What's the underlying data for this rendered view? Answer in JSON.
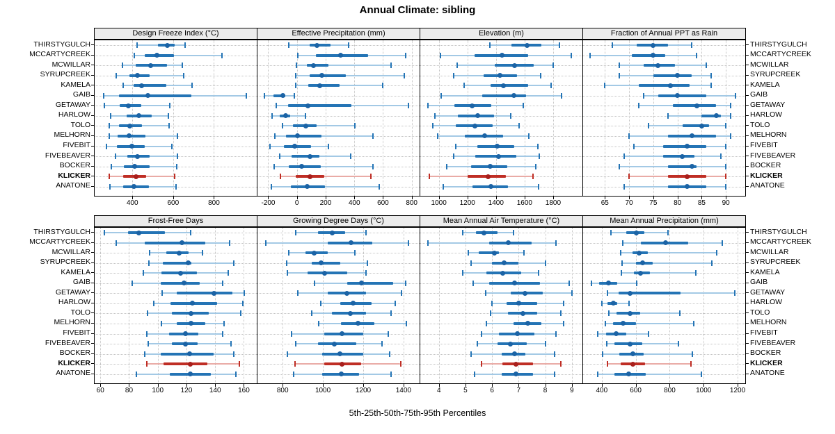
{
  "title": "Annual Climate: sibling",
  "caption": "5th-25th-50th-75th-95th Percentiles",
  "highlight_site": "KLICKER",
  "colors": {
    "blue": "#2474b5",
    "blue_light": "#a3c9e5",
    "blue_dot": "#1b63a5",
    "red": "#bf2e25",
    "red_light": "#e9aba6",
    "red_dot": "#a81f1c",
    "strip_bg": "#ececec",
    "grid": "#c3c3c3",
    "border": "#000000"
  },
  "sites": [
    "THIRSTYGULCH",
    "MCCARTYCREEK",
    "MCWILLAR",
    "SYRUPCREEK",
    "KAMELA",
    "GAIB",
    "GETAWAY",
    "HARLOW",
    "TOLO",
    "MELHORN",
    "FIVEBIT",
    "FIVEBEAVER",
    "BOCKER",
    "KLICKER",
    "ANATONE"
  ],
  "percentile_labels": [
    "5th",
    "25th",
    "50th",
    "75th",
    "95th"
  ],
  "chart_data": [
    {
      "type": "dotplot",
      "title": "Design Freeze Index (°C)",
      "row": 0,
      "col": 0,
      "ticks": [
        400,
        600,
        800
      ],
      "xlim": [
        215,
        1010
      ],
      "values": [
        [
          423,
          524,
          573,
          609,
          660
        ],
        [
          411,
          460,
          519,
          603,
          838
        ],
        [
          351,
          417,
          488,
          569,
          645
        ],
        [
          321,
          385,
          426,
          485,
          652
        ],
        [
          355,
          406,
          447,
          566,
          694
        ],
        [
          261,
          336,
          477,
          688,
          959
        ],
        [
          264,
          338,
          381,
          442,
          584
        ],
        [
          295,
          372,
          432,
          496,
          577
        ],
        [
          288,
          336,
          389,
          448,
          580
        ],
        [
          285,
          328,
          383,
          463,
          620
        ],
        [
          272,
          325,
          396,
          460,
          594
        ],
        [
          317,
          375,
          426,
          485,
          620
        ],
        [
          297,
          358,
          411,
          485,
          617
        ],
        [
          288,
          355,
          418,
          467,
          606
        ],
        [
          291,
          355,
          409,
          482,
          614
        ]
      ]
    },
    {
      "type": "dotplot",
      "title": "Effective Precipitation (mm)",
      "row": 0,
      "col": 1,
      "ticks": [
        -200,
        0,
        200,
        400,
        600,
        800
      ],
      "xlim": [
        -275,
        855
      ],
      "values": [
        [
          -55,
          90,
          140,
          235,
          360
        ],
        [
          5,
          130,
          305,
          495,
          760
        ],
        [
          -5,
          70,
          115,
          220,
          655
        ],
        [
          -10,
          90,
          175,
          340,
          750
        ],
        [
          -10,
          80,
          160,
          295,
          600
        ],
        [
          -225,
          -165,
          -100,
          -80,
          -20
        ],
        [
          -145,
          -60,
          75,
          380,
          775
        ],
        [
          -175,
          -120,
          -80,
          -45,
          60
        ],
        [
          -100,
          -30,
          60,
          135,
          405
        ],
        [
          -155,
          -75,
          5,
          170,
          530
        ],
        [
          -190,
          -90,
          -15,
          100,
          220
        ],
        [
          -120,
          -35,
          90,
          155,
          375
        ],
        [
          -160,
          -55,
          35,
          165,
          530
        ],
        [
          -115,
          -10,
          90,
          190,
          515
        ],
        [
          -180,
          -40,
          70,
          195,
          575
        ]
      ]
    },
    {
      "type": "dotplot",
      "title": "Elevation (m)",
      "row": 0,
      "col": 2,
      "ticks": [
        1000,
        1200,
        1400,
        1600,
        1800
      ],
      "xlim": [
        870,
        2005
      ],
      "values": [
        [
          1355,
          1510,
          1620,
          1720,
          1845
        ],
        [
          1010,
          1250,
          1440,
          1625,
          1925
        ],
        [
          1130,
          1390,
          1530,
          1665,
          1800
        ],
        [
          1105,
          1315,
          1430,
          1545,
          1715
        ],
        [
          1175,
          1360,
          1450,
          1625,
          1785
        ],
        [
          1015,
          1305,
          1525,
          1610,
          1860
        ],
        [
          925,
          1110,
          1235,
          1365,
          1590
        ],
        [
          970,
          1135,
          1270,
          1385,
          1505
        ],
        [
          960,
          1120,
          1250,
          1375,
          1560
        ],
        [
          990,
          1180,
          1320,
          1450,
          1630
        ],
        [
          1120,
          1270,
          1410,
          1530,
          1695
        ],
        [
          1105,
          1255,
          1420,
          1540,
          1705
        ],
        [
          1055,
          1225,
          1360,
          1480,
          1680
        ],
        [
          935,
          1200,
          1345,
          1470,
          1660
        ],
        [
          1030,
          1235,
          1365,
          1485,
          1700
        ]
      ]
    },
    {
      "type": "dotplot",
      "title": "Fraction of Annual PPT as Rain",
      "row": 0,
      "col": 3,
      "ticks": [
        65,
        70,
        75,
        80,
        85,
        90
      ],
      "xlim": [
        60.5,
        94
      ],
      "values": [
        [
          66.5,
          71.5,
          75,
          78,
          83
        ],
        [
          62,
          70.5,
          75,
          77.5,
          84
        ],
        [
          68,
          73,
          76,
          79.5,
          86
        ],
        [
          68,
          75,
          80,
          83,
          87
        ],
        [
          65,
          72,
          78.5,
          82.5,
          87
        ],
        [
          73,
          76,
          80,
          86,
          92
        ],
        [
          72,
          79,
          84,
          88,
          91
        ],
        [
          78,
          85,
          88,
          89,
          91
        ],
        [
          74,
          81,
          85,
          86.5,
          90
        ],
        [
          70,
          78,
          83,
          88,
          91
        ],
        [
          71,
          77,
          82,
          86,
          90
        ],
        [
          69,
          77,
          81,
          83.5,
          89
        ],
        [
          68,
          78,
          83,
          84,
          90
        ],
        [
          70,
          78,
          82,
          86,
          90
        ],
        [
          69,
          78,
          82,
          86,
          90
        ]
      ]
    },
    {
      "type": "dotplot",
      "title": "Frost-Free Days",
      "row": 1,
      "col": 0,
      "ticks": [
        60,
        80,
        100,
        120,
        140,
        160
      ],
      "xlim": [
        56,
        169
      ],
      "values": [
        [
          63,
          79.5,
          87,
          105,
          123
        ],
        [
          71,
          91,
          117,
          133,
          150
        ],
        [
          94.5,
          106,
          115,
          121.5,
          131
        ],
        [
          94,
          103.5,
          121,
          123.5,
          153
        ],
        [
          90,
          102.5,
          116,
          127.5,
          149
        ],
        [
          82,
          102,
          118.5,
          129,
          145
        ],
        [
          103,
          113,
          139,
          152,
          160.5
        ],
        [
          97,
          109,
          124,
          141.5,
          159.5
        ],
        [
          93,
          110,
          123,
          135.5,
          158
        ],
        [
          102.5,
          113,
          123,
          133,
          146
        ],
        [
          92.5,
          108,
          119.5,
          128.5,
          145
        ],
        [
          93.5,
          110,
          119.5,
          128,
          151
        ],
        [
          91,
          102,
          122,
          139,
          153
        ],
        [
          92.5,
          104,
          122.5,
          134.5,
          157
        ],
        [
          85,
          108.5,
          122.5,
          137,
          154.5
        ]
      ]
    },
    {
      "type": "dotplot",
      "title": "Growing Degree Days (°C)",
      "row": 1,
      "col": 1,
      "ticks": [
        800,
        1000,
        1200,
        1400
      ],
      "xlim": [
        675,
        1480
      ],
      "values": [
        [
          865,
          975,
          1045,
          1110,
          1215
        ],
        [
          715,
          1025,
          1140,
          1245,
          1425
        ],
        [
          830,
          915,
          955,
          1025,
          1160
        ],
        [
          820,
          945,
          990,
          1085,
          1220
        ],
        [
          825,
          925,
          1010,
          1120,
          1215
        ],
        [
          960,
          1120,
          1190,
          1350,
          1410
        ],
        [
          875,
          1025,
          1120,
          1215,
          1390
        ],
        [
          990,
          1085,
          1150,
          1240,
          1360
        ],
        [
          945,
          1045,
          1135,
          1215,
          1340
        ],
        [
          980,
          1090,
          1175,
          1255,
          1415
        ],
        [
          845,
          1005,
          1095,
          1200,
          1325
        ],
        [
          865,
          975,
          1057,
          1165,
          1295
        ],
        [
          825,
          995,
          1085,
          1200,
          1330
        ],
        [
          860,
          1005,
          1095,
          1190,
          1385
        ],
        [
          855,
          995,
          1090,
          1180,
          1340
        ]
      ]
    },
    {
      "type": "dotplot",
      "title": "Mean Annual Air Temperature (°C)",
      "row": 1,
      "col": 2,
      "ticks": [
        4,
        5,
        6,
        7,
        8,
        9
      ],
      "xlim": [
        3.3,
        9.4
      ],
      "values": [
        [
          4.9,
          5.4,
          5.7,
          6.2,
          6.8
        ],
        [
          3.6,
          5.9,
          6.6,
          7.5,
          8.4
        ],
        [
          5.1,
          5.5,
          6.1,
          6.25,
          7.2
        ],
        [
          5.2,
          6.0,
          6.45,
          7.0,
          8.0
        ],
        [
          4.9,
          5.8,
          6.4,
          7.1,
          7.75
        ],
        [
          5.3,
          5.9,
          6.85,
          7.8,
          8.9
        ],
        [
          5.75,
          6.7,
          7.25,
          7.9,
          9.0
        ],
        [
          6.0,
          6.55,
          7.0,
          7.7,
          8.7
        ],
        [
          5.95,
          6.6,
          7.15,
          7.7,
          8.6
        ],
        [
          5.8,
          6.8,
          7.35,
          7.85,
          8.7
        ],
        [
          5.6,
          6.25,
          6.95,
          7.6,
          8.4
        ],
        [
          5.45,
          6.2,
          6.7,
          7.3,
          8.0
        ],
        [
          5.2,
          6.35,
          6.85,
          7.25,
          8.35
        ],
        [
          5.6,
          6.4,
          6.9,
          7.55,
          8.6
        ],
        [
          5.35,
          6.35,
          6.9,
          7.55,
          8.35
        ]
      ]
    },
    {
      "type": "dotplot",
      "title": "Mean Annual Precipitation (mm)",
      "row": 1,
      "col": 3,
      "ticks": [
        400,
        600,
        800,
        1000,
        1200
      ],
      "xlim": [
        290,
        1245
      ],
      "values": [
        [
          455,
          545,
          605,
          650,
          790
        ],
        [
          525,
          630,
          775,
          910,
          1110
        ],
        [
          510,
          580,
          620,
          670,
          1075
        ],
        [
          520,
          600,
          640,
          700,
          1050
        ],
        [
          515,
          590,
          630,
          685,
          955
        ],
        [
          340,
          385,
          440,
          490,
          605
        ],
        [
          435,
          500,
          565,
          865,
          1185
        ],
        [
          400,
          435,
          470,
          490,
          560
        ],
        [
          440,
          485,
          565,
          625,
          860
        ],
        [
          420,
          465,
          525,
          600,
          940
        ],
        [
          375,
          425,
          485,
          545,
          675
        ],
        [
          430,
          475,
          565,
          640,
          850
        ],
        [
          405,
          505,
          585,
          645,
          935
        ],
        [
          435,
          510,
          585,
          655,
          925
        ],
        [
          375,
          475,
          560,
          660,
          985
        ]
      ]
    }
  ]
}
